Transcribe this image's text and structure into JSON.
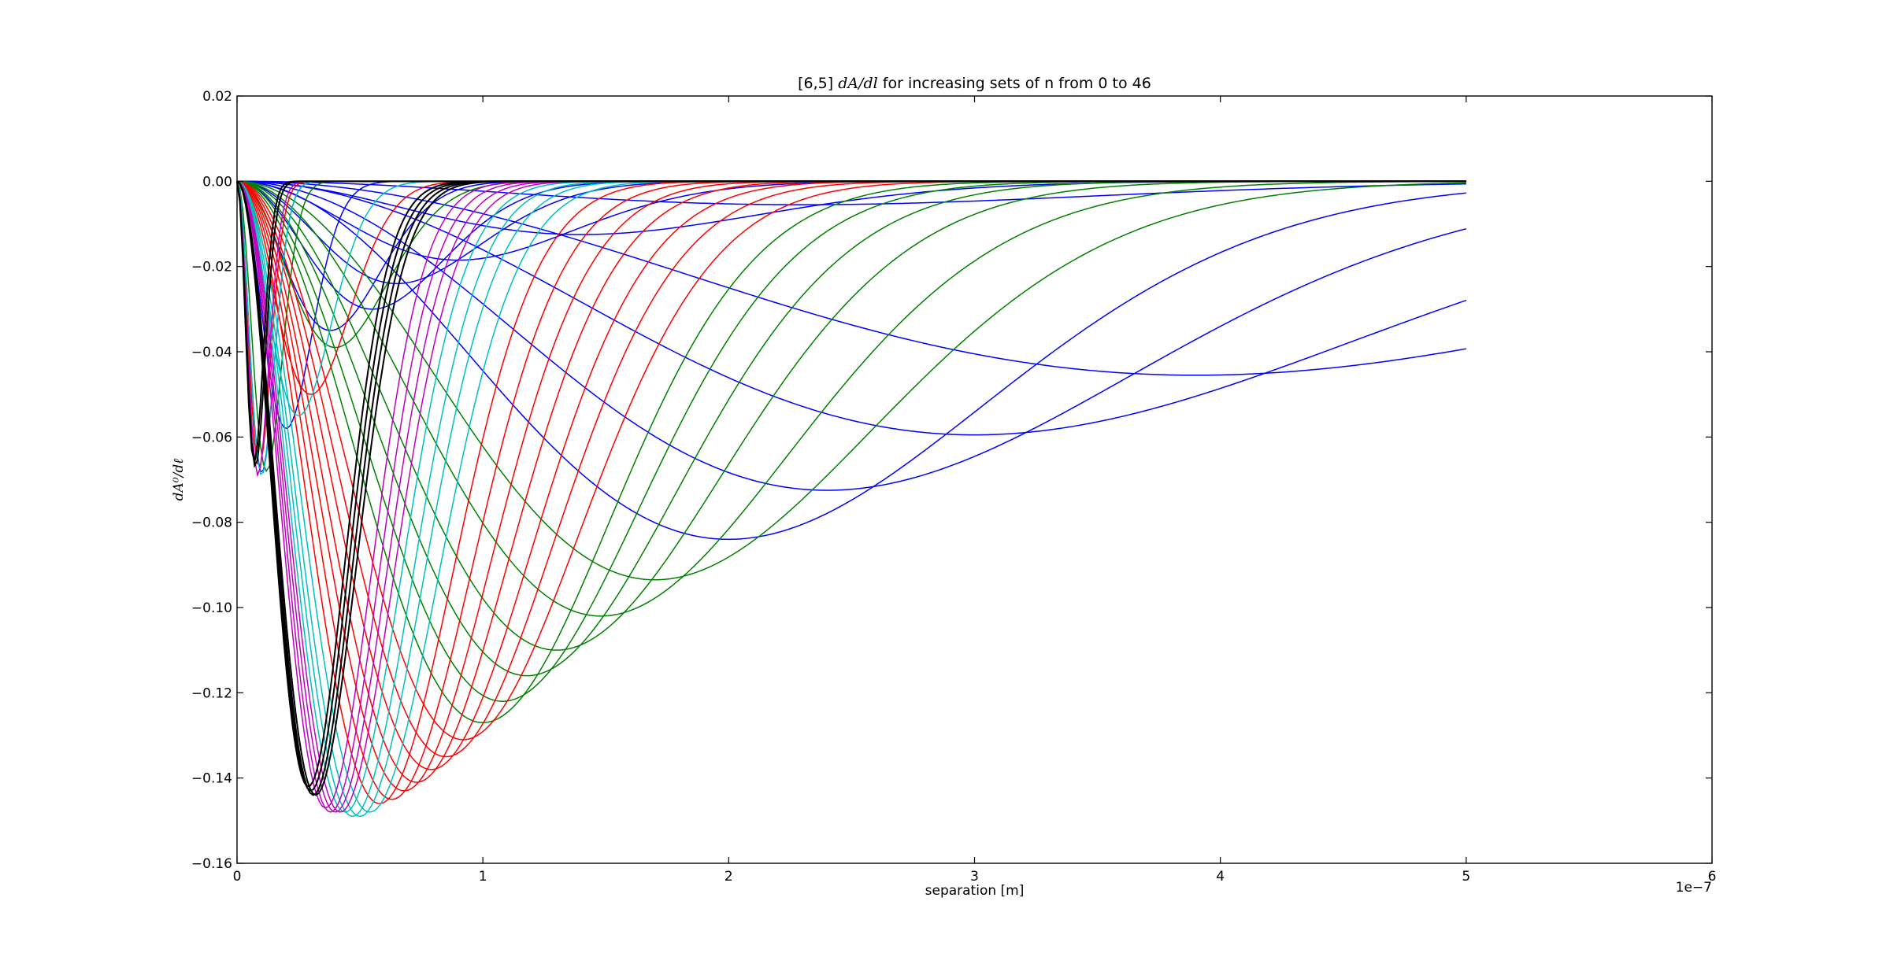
{
  "chart_data": {
    "type": "line",
    "title": {
      "prefix": "[6,5] ",
      "math": "dA/dl",
      "suffix": " for increasing sets of n from 0 to 46"
    },
    "xlabel": "separation [m]",
    "ylabel": "dA⁰/dℓ",
    "x_offset_label": "1e−7",
    "x_scale": 1e-07,
    "xlim": [
      0,
      6
    ],
    "ylim": [
      -0.16,
      0.02
    ],
    "x_ticks": [
      "0",
      "1",
      "2",
      "3",
      "4",
      "5",
      "6"
    ],
    "y_ticks": [
      "0.02",
      "0.00",
      "−0.02",
      "−0.04",
      "−0.06",
      "−0.08",
      "−0.10",
      "−0.12",
      "−0.14",
      "−0.16"
    ],
    "x_domain": [
      0,
      5
    ],
    "grid": false,
    "legend": "none",
    "colors": {
      "blue": "#0000ff",
      "green": "#008000",
      "red": "#ff0000",
      "cyan": "#00bfbf",
      "magenta": "#bf00bf",
      "black": "#000000"
    },
    "series_model": "each curve approximated by y = -depth * (x/x_min)^2 * exp(1 - (x/x_min)^2); x_min in units of 1e-7 m",
    "series": [
      {
        "color": "blue",
        "x_min": 0.1,
        "depth": 0.0685
      },
      {
        "color": "blue",
        "x_min": 0.2,
        "depth": 0.058
      },
      {
        "color": "blue",
        "x_min": 0.38,
        "depth": 0.035
      },
      {
        "color": "blue",
        "x_min": 0.55,
        "depth": 0.03
      },
      {
        "color": "blue",
        "x_min": 0.65,
        "depth": 0.024
      },
      {
        "color": "blue",
        "x_min": 0.9,
        "depth": 0.0185
      },
      {
        "color": "blue",
        "x_min": 1.4,
        "depth": 0.0125
      },
      {
        "color": "blue",
        "x_min": 2.3,
        "depth": 0.0055
      },
      {
        "color": "blue",
        "x_min": 2.0,
        "depth": 0.084
      },
      {
        "color": "blue",
        "x_min": 2.4,
        "depth": 0.0725
      },
      {
        "color": "blue",
        "x_min": 3.0,
        "depth": 0.0595
      },
      {
        "color": "blue",
        "x_min": 3.9,
        "depth": 0.0455
      },
      {
        "color": "green",
        "x_min": 0.12,
        "depth": 0.068
      },
      {
        "color": "green",
        "x_min": 0.4,
        "depth": 0.039
      },
      {
        "color": "green",
        "x_min": 1.0,
        "depth": 0.127
      },
      {
        "color": "green",
        "x_min": 1.08,
        "depth": 0.122
      },
      {
        "color": "green",
        "x_min": 1.18,
        "depth": 0.116
      },
      {
        "color": "green",
        "x_min": 1.3,
        "depth": 0.11
      },
      {
        "color": "green",
        "x_min": 1.48,
        "depth": 0.102
      },
      {
        "color": "green",
        "x_min": 1.7,
        "depth": 0.0935
      },
      {
        "color": "red",
        "x_min": 0.09,
        "depth": 0.067
      },
      {
        "color": "red",
        "x_min": 0.3,
        "depth": 0.05
      },
      {
        "color": "red",
        "x_min": 0.58,
        "depth": 0.146
      },
      {
        "color": "red",
        "x_min": 0.63,
        "depth": 0.145
      },
      {
        "color": "red",
        "x_min": 0.68,
        "depth": 0.143
      },
      {
        "color": "red",
        "x_min": 0.73,
        "depth": 0.141
      },
      {
        "color": "red",
        "x_min": 0.79,
        "depth": 0.138
      },
      {
        "color": "red",
        "x_min": 0.85,
        "depth": 0.135
      },
      {
        "color": "red",
        "x_min": 0.92,
        "depth": 0.131
      },
      {
        "color": "cyan",
        "x_min": 0.1,
        "depth": 0.069
      },
      {
        "color": "cyan",
        "x_min": 0.25,
        "depth": 0.055
      },
      {
        "color": "cyan",
        "x_min": 0.44,
        "depth": 0.148
      },
      {
        "color": "cyan",
        "x_min": 0.47,
        "depth": 0.149
      },
      {
        "color": "cyan",
        "x_min": 0.5,
        "depth": 0.149
      },
      {
        "color": "cyan",
        "x_min": 0.54,
        "depth": 0.148
      },
      {
        "color": "magenta",
        "x_min": 0.085,
        "depth": 0.069
      },
      {
        "color": "magenta",
        "x_min": 0.36,
        "depth": 0.147
      },
      {
        "color": "magenta",
        "x_min": 0.38,
        "depth": 0.148
      },
      {
        "color": "magenta",
        "x_min": 0.4,
        "depth": 0.148
      },
      {
        "color": "magenta",
        "x_min": 0.42,
        "depth": 0.148
      },
      {
        "color": "black",
        "x_min": 0.07,
        "depth": 0.066
      },
      {
        "color": "black",
        "x_min": 0.075,
        "depth": 0.067
      },
      {
        "color": "black",
        "x_min": 0.29,
        "depth": 0.142
      },
      {
        "color": "black",
        "x_min": 0.3,
        "depth": 0.143
      },
      {
        "color": "black",
        "x_min": 0.31,
        "depth": 0.144
      },
      {
        "color": "black",
        "x_min": 0.32,
        "depth": 0.144
      }
    ]
  }
}
